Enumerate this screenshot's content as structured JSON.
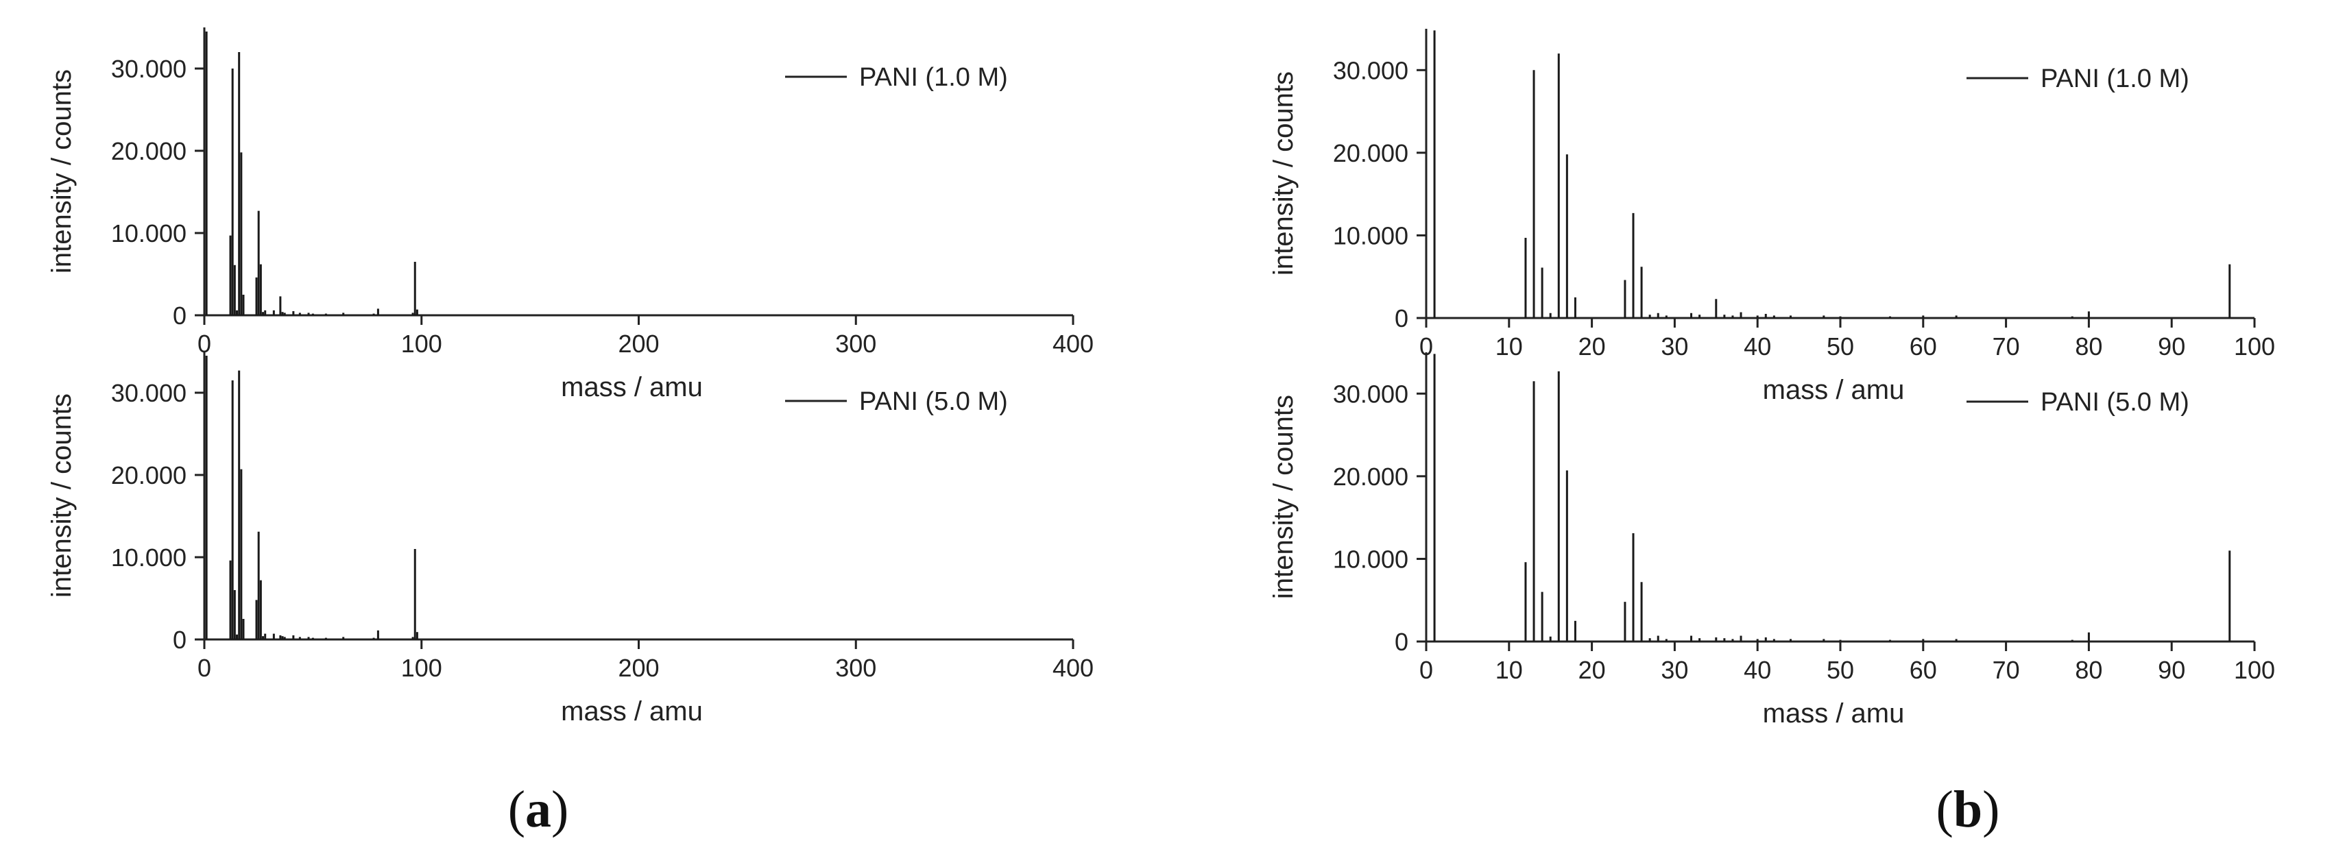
{
  "panels": [
    {
      "caption": "a",
      "charts": [
        {
          "type": "bar",
          "legend": "PANI (1.0 M)",
          "xlabel": "mass / amu",
          "ylabel": "intensity / counts",
          "xlim": [
            0,
            400
          ],
          "ylim": [
            0,
            35000
          ],
          "xticks": [
            0,
            100,
            200,
            300,
            400
          ],
          "xtick_labels": [
            "0",
            "100",
            "200",
            "300",
            "400"
          ],
          "yticks": [
            0,
            10000,
            20000,
            30000
          ],
          "ytick_labels": [
            "0",
            "10.000",
            "20.000",
            "30.000"
          ],
          "x": [
            1,
            12,
            13,
            14,
            15,
            16,
            17,
            18,
            24,
            25,
            26,
            27,
            28,
            32,
            35,
            36,
            37,
            41,
            44,
            48,
            50,
            56,
            64,
            78,
            80,
            96,
            97,
            98
          ],
          "values": [
            34500,
            9700,
            30000,
            6100,
            600,
            32000,
            19800,
            2500,
            4600,
            12700,
            6200,
            400,
            600,
            600,
            2300,
            400,
            300,
            500,
            300,
            300,
            200,
            200,
            300,
            200,
            800,
            300,
            6500,
            700
          ]
        },
        {
          "type": "bar",
          "legend": "PANI (5.0 M)",
          "xlabel": "mass / amu",
          "ylabel": "intensity / counts",
          "xlim": [
            0,
            400
          ],
          "ylim": [
            0,
            35000
          ],
          "xticks": [
            0,
            100,
            200,
            300,
            400
          ],
          "xtick_labels": [
            "0",
            "100",
            "200",
            "300",
            "400"
          ],
          "yticks": [
            0,
            10000,
            20000,
            30000
          ],
          "ytick_labels": [
            "0",
            "10.000",
            "20.000",
            "30.000"
          ],
          "x": [
            1,
            12,
            13,
            14,
            15,
            16,
            17,
            18,
            24,
            25,
            26,
            27,
            28,
            32,
            35,
            36,
            37,
            41,
            44,
            48,
            50,
            56,
            64,
            78,
            80,
            96,
            97,
            98
          ],
          "values": [
            34500,
            9600,
            31500,
            6000,
            600,
            32700,
            20700,
            2500,
            4800,
            13100,
            7200,
            400,
            700,
            700,
            500,
            400,
            300,
            500,
            300,
            300,
            200,
            200,
            300,
            200,
            1100,
            300,
            11000,
            900
          ]
        }
      ]
    },
    {
      "caption": "b",
      "charts": [
        {
          "type": "bar",
          "legend": "PANI (1.0 M)",
          "xlabel": "mass / amu",
          "ylabel": "intensity / counts",
          "xlim": [
            0,
            100
          ],
          "ylim": [
            0,
            35000
          ],
          "xticks": [
            0,
            10,
            20,
            30,
            40,
            50,
            60,
            70,
            80,
            90,
            100
          ],
          "xtick_labels": [
            "0",
            "10",
            "20",
            "30",
            "40",
            "50",
            "60",
            "70",
            "80",
            "90",
            "100"
          ],
          "yticks": [
            0,
            10000,
            20000,
            30000
          ],
          "ytick_labels": [
            "0",
            "10.000",
            "20.000",
            "30.000"
          ],
          "x": [
            1,
            12,
            13,
            14,
            15,
            16,
            17,
            18,
            24,
            25,
            26,
            27,
            28,
            29,
            32,
            33,
            35,
            36,
            37,
            38,
            40,
            41,
            42,
            44,
            48,
            50,
            56,
            60,
            64,
            78,
            80,
            97
          ],
          "values": [
            34800,
            9700,
            30000,
            6100,
            600,
            32000,
            19800,
            2500,
            4600,
            12700,
            6200,
            400,
            600,
            300,
            600,
            400,
            2300,
            400,
            300,
            700,
            300,
            500,
            300,
            300,
            300,
            200,
            200,
            300,
            300,
            200,
            800,
            6500
          ]
        },
        {
          "type": "bar",
          "legend": "PANI (5.0 M)",
          "xlabel": "mass / amu",
          "ylabel": "intensity / counts",
          "xlim": [
            0,
            100
          ],
          "ylim": [
            0,
            35000
          ],
          "xticks": [
            0,
            10,
            20,
            30,
            40,
            50,
            60,
            70,
            80,
            90,
            100
          ],
          "xtick_labels": [
            "0",
            "10",
            "20",
            "30",
            "40",
            "50",
            "60",
            "70",
            "80",
            "90",
            "100"
          ],
          "yticks": [
            0,
            10000,
            20000,
            30000
          ],
          "ytick_labels": [
            "0",
            "10.000",
            "20.000",
            "30.000"
          ],
          "x": [
            1,
            12,
            13,
            14,
            15,
            16,
            17,
            18,
            24,
            25,
            26,
            27,
            28,
            29,
            32,
            33,
            35,
            36,
            37,
            38,
            40,
            41,
            42,
            44,
            48,
            50,
            56,
            60,
            64,
            78,
            80,
            97
          ],
          "values": [
            34800,
            9600,
            31500,
            6000,
            600,
            32700,
            20700,
            2500,
            4800,
            13100,
            7200,
            400,
            700,
            300,
            700,
            400,
            500,
            400,
            300,
            700,
            300,
            500,
            300,
            300,
            300,
            200,
            200,
            300,
            300,
            200,
            1100,
            11000
          ]
        }
      ]
    }
  ]
}
